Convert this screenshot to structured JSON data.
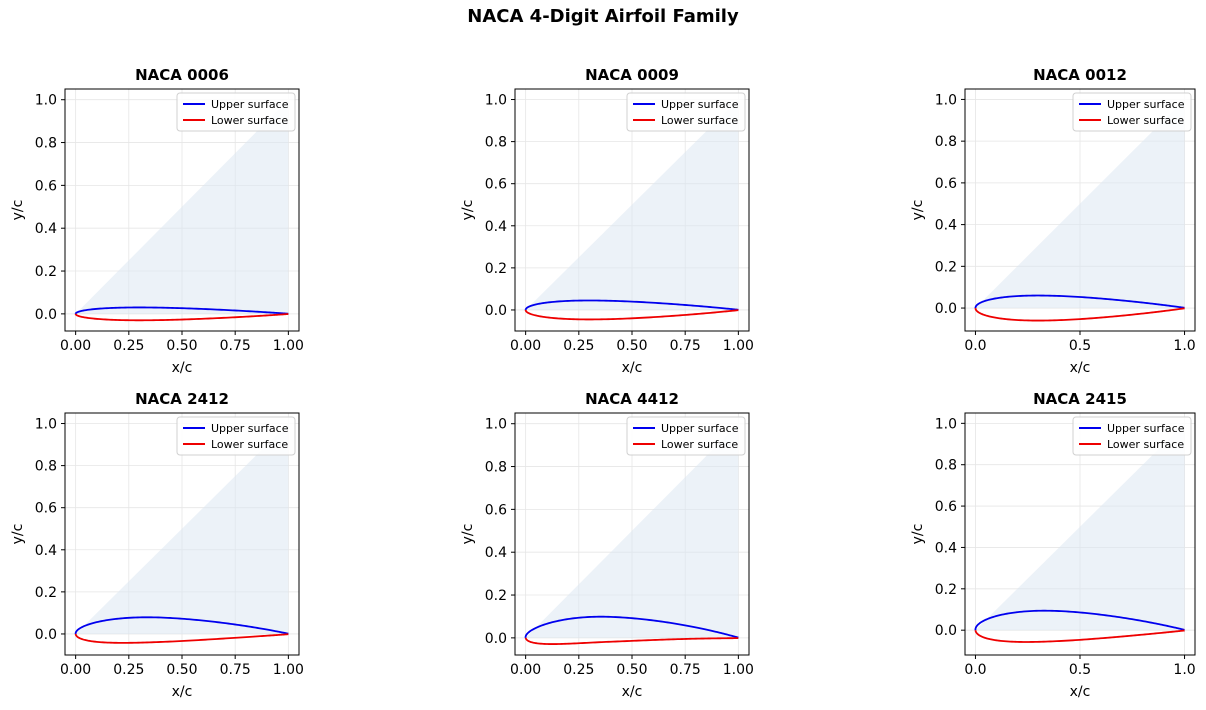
{
  "figure": {
    "title": "NACA 4-Digit Airfoil Family"
  },
  "colors": {
    "upper": "#0000ee",
    "lower": "#ee0000",
    "fill": "#d9e6f2",
    "grid": "#e6e6e6"
  },
  "legend_labels": {
    "upper": "Upper surface",
    "lower": "Lower surface"
  },
  "chart_data": [
    {
      "type": "line",
      "title": "NACA 0006",
      "xlabel": "x/c",
      "ylabel": "y/c",
      "xlim": [
        -0.05,
        1.05
      ],
      "ylim": [
        -0.08,
        1.05
      ],
      "xticks": [
        "0.00",
        "0.25",
        "0.50",
        "0.75",
        "1.00"
      ],
      "xtick_values": [
        0,
        0.25,
        0.5,
        0.75,
        1.0
      ],
      "yticks": [
        "0.0",
        "0.2",
        "0.4",
        "0.6",
        "0.8",
        "1.0"
      ],
      "ytick_values": [
        0,
        0.2,
        0.4,
        0.6,
        0.8,
        1.0
      ],
      "m": 0.0,
      "p": 0.0,
      "t": 0.06,
      "grid": true,
      "legend": "top-right",
      "series": [
        {
          "name": "Upper surface"
        },
        {
          "name": "Lower surface"
        }
      ]
    },
    {
      "type": "line",
      "title": "NACA 0009",
      "xlabel": "x/c",
      "ylabel": "y/c",
      "xlim": [
        -0.05,
        1.05
      ],
      "ylim": [
        -0.1,
        1.05
      ],
      "xticks": [
        "0.00",
        "0.25",
        "0.50",
        "0.75",
        "1.00"
      ],
      "xtick_values": [
        0,
        0.25,
        0.5,
        0.75,
        1.0
      ],
      "yticks": [
        "0.0",
        "0.2",
        "0.4",
        "0.6",
        "0.8",
        "1.0"
      ],
      "ytick_values": [
        0,
        0.2,
        0.4,
        0.6,
        0.8,
        1.0
      ],
      "m": 0.0,
      "p": 0.0,
      "t": 0.09,
      "grid": true,
      "legend": "top-right",
      "series": [
        {
          "name": "Upper surface"
        },
        {
          "name": "Lower surface"
        }
      ]
    },
    {
      "type": "line",
      "title": "NACA 0012",
      "xlabel": "x/c",
      "ylabel": "y/c",
      "xlim": [
        -0.05,
        1.05
      ],
      "ylim": [
        -0.11,
        1.05
      ],
      "xticks": [
        "0.0",
        "0.5",
        "1.0"
      ],
      "xtick_values": [
        0,
        0.5,
        1.0
      ],
      "yticks": [
        "0.0",
        "0.2",
        "0.4",
        "0.6",
        "0.8",
        "1.0"
      ],
      "ytick_values": [
        0,
        0.2,
        0.4,
        0.6,
        0.8,
        1.0
      ],
      "m": 0.0,
      "p": 0.0,
      "t": 0.12,
      "grid": true,
      "legend": "top-right",
      "series": [
        {
          "name": "Upper surface"
        },
        {
          "name": "Lower surface"
        }
      ]
    },
    {
      "type": "line",
      "title": "NACA 2412",
      "xlabel": "x/c",
      "ylabel": "y/c",
      "xlim": [
        -0.05,
        1.05
      ],
      "ylim": [
        -0.1,
        1.05
      ],
      "xticks": [
        "0.00",
        "0.25",
        "0.50",
        "0.75",
        "1.00"
      ],
      "xtick_values": [
        0,
        0.25,
        0.5,
        0.75,
        1.0
      ],
      "yticks": [
        "0.0",
        "0.2",
        "0.4",
        "0.6",
        "0.8",
        "1.0"
      ],
      "ytick_values": [
        0,
        0.2,
        0.4,
        0.6,
        0.8,
        1.0
      ],
      "m": 0.02,
      "p": 0.4,
      "t": 0.12,
      "grid": true,
      "legend": "top-right",
      "series": [
        {
          "name": "Upper surface"
        },
        {
          "name": "Lower surface"
        }
      ]
    },
    {
      "type": "line",
      "title": "NACA 4412",
      "xlabel": "x/c",
      "ylabel": "y/c",
      "xlim": [
        -0.05,
        1.05
      ],
      "ylim": [
        -0.08,
        1.05
      ],
      "xticks": [
        "0.00",
        "0.25",
        "0.50",
        "0.75",
        "1.00"
      ],
      "xtick_values": [
        0,
        0.25,
        0.5,
        0.75,
        1.0
      ],
      "yticks": [
        "0.0",
        "0.2",
        "0.4",
        "0.6",
        "0.8",
        "1.0"
      ],
      "ytick_values": [
        0,
        0.2,
        0.4,
        0.6,
        0.8,
        1.0
      ],
      "m": 0.04,
      "p": 0.4,
      "t": 0.12,
      "grid": true,
      "legend": "top-right",
      "series": [
        {
          "name": "Upper surface"
        },
        {
          "name": "Lower surface"
        }
      ]
    },
    {
      "type": "line",
      "title": "NACA 2415",
      "xlabel": "x/c",
      "ylabel": "y/c",
      "xlim": [
        -0.05,
        1.05
      ],
      "ylim": [
        -0.12,
        1.05
      ],
      "xticks": [
        "0.0",
        "0.5",
        "1.0"
      ],
      "xtick_values": [
        0,
        0.5,
        1.0
      ],
      "yticks": [
        "0.0",
        "0.2",
        "0.4",
        "0.6",
        "0.8",
        "1.0"
      ],
      "ytick_values": [
        0,
        0.2,
        0.4,
        0.6,
        0.8,
        1.0
      ],
      "m": 0.02,
      "p": 0.4,
      "t": 0.15,
      "grid": true,
      "legend": "top-right",
      "series": [
        {
          "name": "Upper surface"
        },
        {
          "name": "Lower surface"
        }
      ]
    }
  ]
}
